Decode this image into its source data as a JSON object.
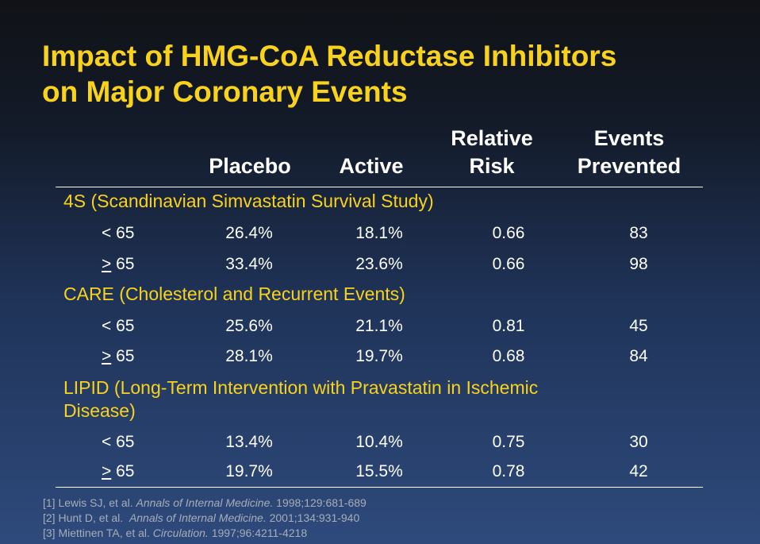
{
  "title": {
    "line1": "Impact of HMG-CoA Reductase Inhibitors",
    "line2": "on Major Coronary Events"
  },
  "columns": {
    "placebo": "Placebo",
    "active": "Active",
    "relative_risk_line1": "Relative",
    "relative_risk_line2": "Risk",
    "events_prevented_line1": "Events",
    "events_prevented_line2": "Prevented"
  },
  "groups": [
    {
      "name": "4S (Scandinavian Simvastatin Survival Study)",
      "rows": [
        {
          "label_op": "<",
          "label_age": "65",
          "placebo": "26.4%",
          "active": "18.1%",
          "relative_risk": "0.66",
          "events_prevented": "83"
        },
        {
          "label_op": ">",
          "label_age": "65",
          "placebo": "33.4%",
          "active": "23.6%",
          "relative_risk": "0.66",
          "events_prevented": "98"
        }
      ]
    },
    {
      "name": "CARE (Cholesterol and Recurrent Events)",
      "rows": [
        {
          "label_op": "<",
          "label_age": "65",
          "placebo": "25.6%",
          "active": "21.1%",
          "relative_risk": "0.81",
          "events_prevented": "45"
        },
        {
          "label_op": ">",
          "label_age": "65",
          "placebo": "28.1%",
          "active": "19.7%",
          "relative_risk": "0.68",
          "events_prevented": "84"
        }
      ]
    },
    {
      "name_line1": "LIPID (Long-Term Intervention with Pravastatin in Ischemic",
      "name_line2": "Disease)",
      "rows": [
        {
          "label_op": "<",
          "label_age": "65",
          "placebo": "13.4%",
          "active": "10.4%",
          "relative_risk": "0.75",
          "events_prevented": "30"
        },
        {
          "label_op": ">",
          "label_age": "65",
          "placebo": "19.7%",
          "active": "15.5%",
          "relative_risk": "0.78",
          "events_prevented": "42"
        }
      ]
    }
  ],
  "references": [
    {
      "pre": "[1] Lewis SJ, et al. ",
      "journal": "Annals of Internal Medicine.",
      "post": " 1998;129:681-689"
    },
    {
      "pre": "[2] Hunt D, et al.  ",
      "journal": "Annals of Internal Medicine.",
      "post": " 2001;134:931-940"
    },
    {
      "pre": "[3] Miettinen TA, et al. ",
      "journal": "Circulation.",
      "post": " 1997;96:4211-4218"
    }
  ],
  "colors": {
    "title": "#f9d21c",
    "group_title": "#f9d21c",
    "text": "#ffffff",
    "reference": "#a7adb8"
  }
}
